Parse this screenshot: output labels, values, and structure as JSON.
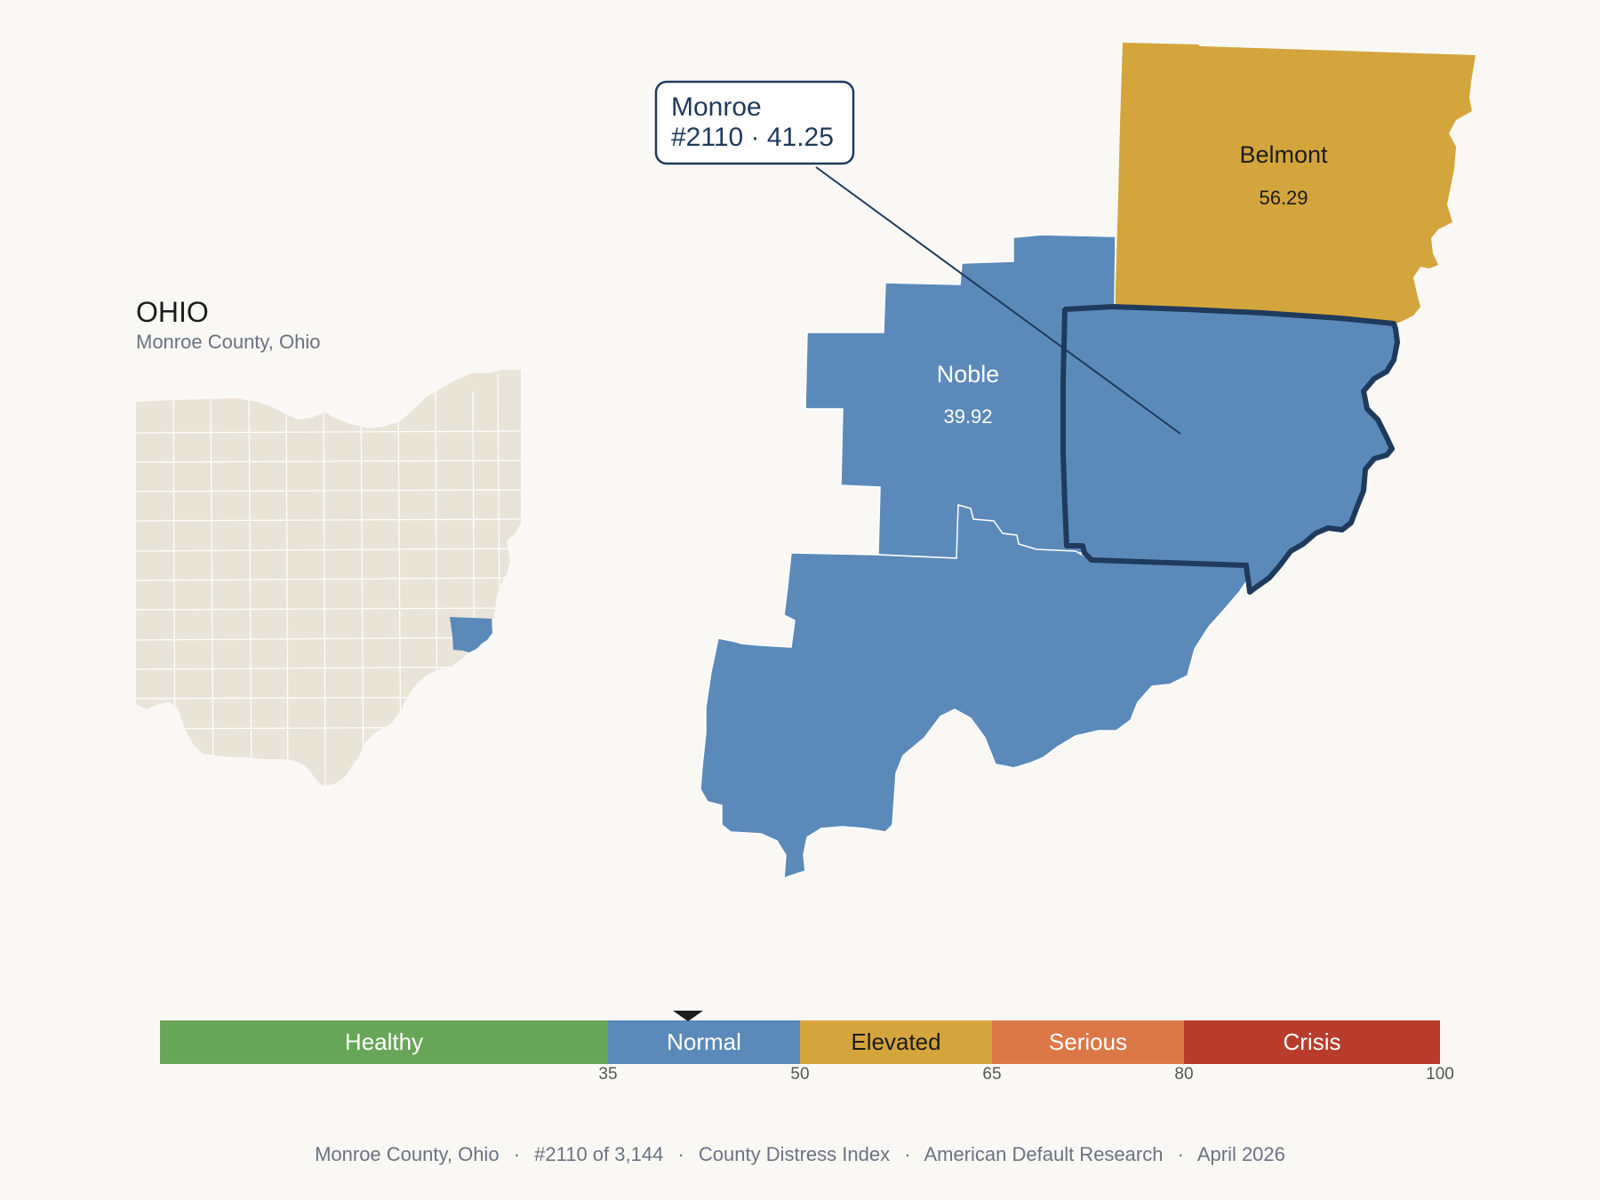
{
  "inset": {
    "state_label": "OHIO",
    "subtitle": "Monroe County, Ohio",
    "base_color": "#e9e4d8",
    "highlight_color": "#5b8aba"
  },
  "counties": [
    {
      "id": "belmont",
      "name": "Belmont",
      "score": "56.29",
      "color": "#d4a53c",
      "text_color": "#1c1c1c"
    },
    {
      "id": "noble",
      "name": "Noble",
      "score": "39.92",
      "color": "#5b8aba",
      "text_color": "#ffffff"
    },
    {
      "id": "washington",
      "name": "",
      "score": "",
      "color": "#5b8aba",
      "text_color": "#ffffff"
    },
    {
      "id": "monroe",
      "name": "",
      "score": "",
      "color": "#5b8aba",
      "text_color": "#ffffff",
      "outline_color": "#1f3a5c"
    }
  ],
  "callout": {
    "line1": "Monroe",
    "line2": "#2110 · 41.25"
  },
  "scale": {
    "bands": [
      {
        "label": "Healthy",
        "min": 0,
        "max": 35,
        "color": "#67a658",
        "text_color": "#ffffff"
      },
      {
        "label": "Normal",
        "min": 35,
        "max": 50,
        "color": "#5b8aba",
        "text_color": "#ffffff"
      },
      {
        "label": "Elevated",
        "min": 50,
        "max": 65,
        "color": "#d4a53c",
        "text_color": "#1c1c1c"
      },
      {
        "label": "Serious",
        "min": 65,
        "max": 80,
        "color": "#dc7747",
        "text_color": "#ffffff"
      },
      {
        "label": "Crisis",
        "min": 80,
        "max": 100,
        "color": "#b83c2c",
        "text_color": "#ffffff"
      }
    ],
    "ticks": [
      "35",
      "50",
      "65",
      "80",
      "100"
    ],
    "marker_value": 41.25
  },
  "footer": {
    "county": "Monroe County, Ohio",
    "rank": "#2110 of 3,144",
    "index": "County Distress Index",
    "source": "American Default Research",
    "date": "April 2026",
    "separator": "·"
  }
}
